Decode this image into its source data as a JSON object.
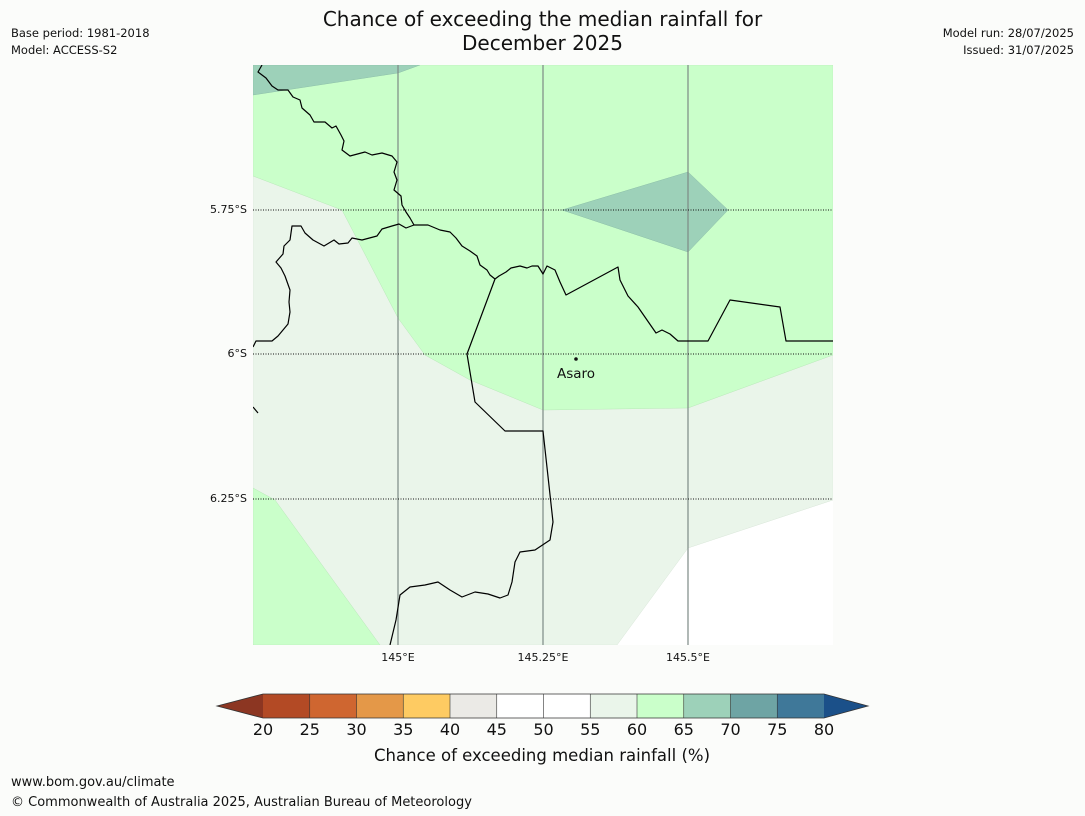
{
  "title_line1": "Chance of exceeding the median rainfall for",
  "title_line2": "December 2025",
  "meta": {
    "base_period": "Base period: 1981-2018",
    "model": "Model: ACCESS-S2",
    "model_run": "Model run: 28/07/2025",
    "issued": "Issued: 31/07/2025"
  },
  "map": {
    "lat_labels": [
      "5.75°S",
      "6°S",
      "6.25°S"
    ],
    "lon_labels": [
      "145°E",
      "145.25°E",
      "145.5°E"
    ],
    "place": "Asaro",
    "category_colors": {
      "40-45": "#ebeae6",
      "50-55": "#ffffff",
      "55-60": "#eaf5ea",
      "60-65": "#caffca",
      "65-70": "#9dd1b9"
    }
  },
  "colorbar": {
    "ticks": [
      "20",
      "25",
      "30",
      "35",
      "40",
      "45",
      "50",
      "55",
      "60",
      "65",
      "70",
      "75",
      "80"
    ],
    "colors": [
      "#b34a25",
      "#cf6630",
      "#e49848",
      "#fecb62",
      "#ebeae6",
      "#ffffff",
      "#ffffff",
      "#eaf5ea",
      "#caffca",
      "#9dd1b9",
      "#6ea4a4",
      "#3f7899"
    ],
    "under_color": "#8c3622",
    "over_color": "#1b5089",
    "label": "Chance of exceeding median rainfall (%)"
  },
  "footer": {
    "url": "www.bom.gov.au/climate",
    "copyright": "© Commonwealth of Australia 2025, Australian Bureau of Meteorology"
  }
}
